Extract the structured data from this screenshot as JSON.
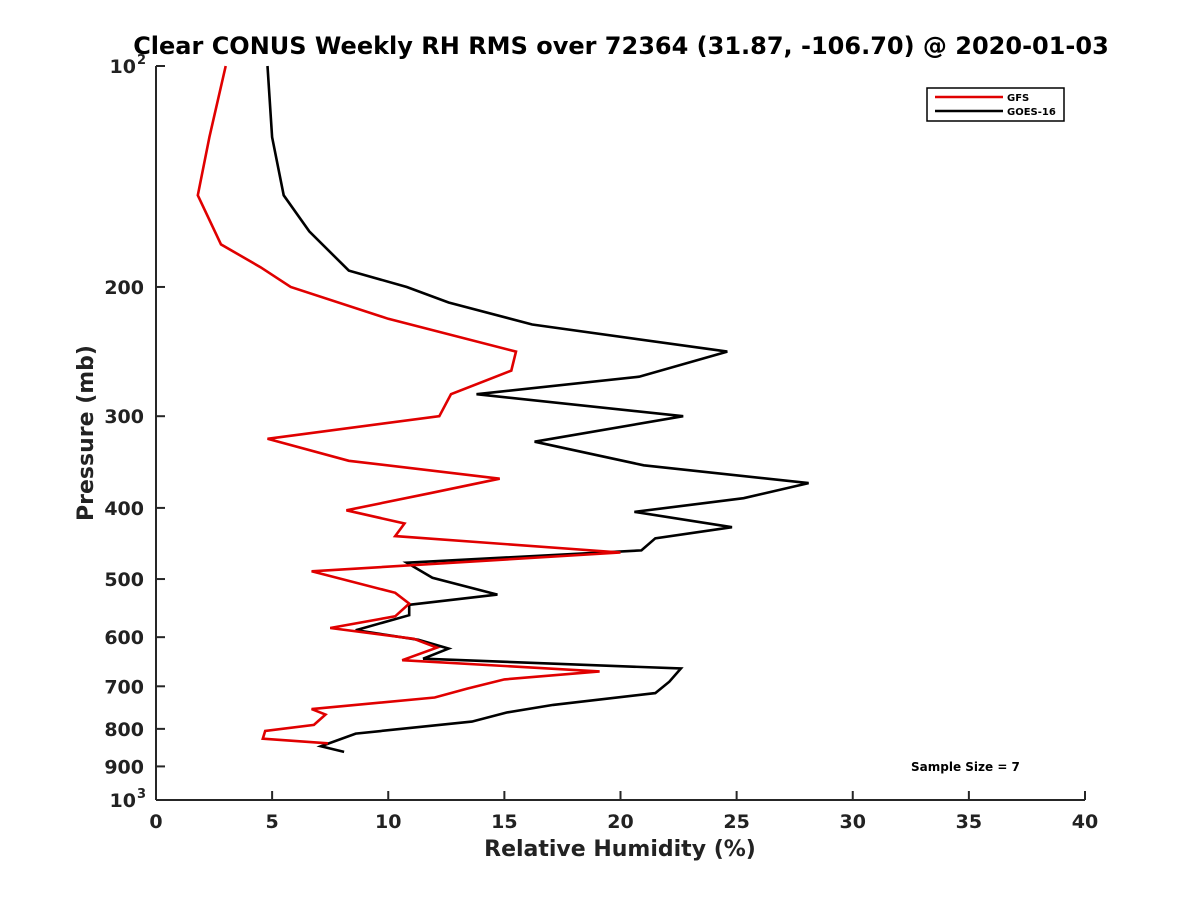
{
  "chart_data": {
    "type": "line",
    "title": "Clear CONUS Weekly RH RMS over 72364 (31.87, -106.70) @ 2020-01-03",
    "xlabel": "Relative Humidity (%)",
    "ylabel": "Pressure (mb)",
    "xlim": [
      0,
      40
    ],
    "ylim": [
      100,
      1000
    ],
    "y_scale": "log",
    "y_reversed": true,
    "x_ticks": [
      "0",
      "5",
      "10",
      "15",
      "20",
      "25",
      "30",
      "35",
      "40"
    ],
    "y_ticks": [
      {
        "value": 100,
        "label": "10",
        "sup": "2"
      },
      {
        "value": 200,
        "label": "200",
        "sup": ""
      },
      {
        "value": 300,
        "label": "300",
        "sup": ""
      },
      {
        "value": 400,
        "label": "400",
        "sup": ""
      },
      {
        "value": 500,
        "label": "500",
        "sup": ""
      },
      {
        "value": 600,
        "label": "600",
        "sup": ""
      },
      {
        "value": 700,
        "label": "700",
        "sup": ""
      },
      {
        "value": 800,
        "label": "800",
        "sup": ""
      },
      {
        "value": 900,
        "label": "900",
        "sup": ""
      },
      {
        "value": 1000,
        "label": "10",
        "sup": "3"
      }
    ],
    "grid": false,
    "legend_position": "top-right",
    "annotation": "Sample Size = 7",
    "series": [
      {
        "name": "GFS",
        "color": "#e00000",
        "points": [
          [
            3.0,
            100
          ],
          [
            2.3,
            125
          ],
          [
            1.8,
            150
          ],
          [
            2.8,
            175
          ],
          [
            4.5,
            188
          ],
          [
            5.8,
            200
          ],
          [
            10.0,
            221
          ],
          [
            15.5,
            245
          ],
          [
            15.3,
            260
          ],
          [
            12.7,
            280
          ],
          [
            12.2,
            300
          ],
          [
            4.8,
            322
          ],
          [
            8.3,
            345
          ],
          [
            14.8,
            365
          ],
          [
            11.8,
            382
          ],
          [
            8.2,
            403
          ],
          [
            10.7,
            420
          ],
          [
            10.3,
            437
          ],
          [
            20.0,
            460
          ],
          [
            6.7,
            488
          ],
          [
            10.3,
            522
          ],
          [
            10.9,
            540
          ],
          [
            10.3,
            562
          ],
          [
            7.5,
            583
          ],
          [
            11.1,
            603
          ],
          [
            12.1,
            620
          ],
          [
            10.6,
            645
          ],
          [
            19.1,
            668
          ],
          [
            15.0,
            685
          ],
          [
            13.4,
            705
          ],
          [
            12.0,
            725
          ],
          [
            6.7,
            752
          ],
          [
            7.3,
            765
          ],
          [
            6.8,
            790
          ],
          [
            4.7,
            805
          ],
          [
            4.6,
            825
          ],
          [
            7.4,
            837
          ]
        ]
      },
      {
        "name": "GOES-16",
        "color": "#000000",
        "points": [
          [
            4.8,
            100
          ],
          [
            5.0,
            125
          ],
          [
            5.5,
            150
          ],
          [
            6.6,
            168
          ],
          [
            8.3,
            190
          ],
          [
            10.8,
            200
          ],
          [
            12.6,
            210
          ],
          [
            16.2,
            225
          ],
          [
            24.6,
            245
          ],
          [
            20.8,
            265
          ],
          [
            13.8,
            280
          ],
          [
            22.7,
            300
          ],
          [
            16.3,
            325
          ],
          [
            21.0,
            350
          ],
          [
            28.1,
            370
          ],
          [
            25.3,
            388
          ],
          [
            20.6,
            405
          ],
          [
            24.8,
            425
          ],
          [
            21.5,
            440
          ],
          [
            20.9,
            457
          ],
          [
            10.8,
            475
          ],
          [
            11.9,
            498
          ],
          [
            14.7,
            525
          ],
          [
            10.9,
            542
          ],
          [
            10.9,
            560
          ],
          [
            8.6,
            587
          ],
          [
            11.3,
            605
          ],
          [
            12.6,
            622
          ],
          [
            11.5,
            642
          ],
          [
            22.6,
            662
          ],
          [
            22.1,
            690
          ],
          [
            21.5,
            715
          ],
          [
            17.1,
            742
          ],
          [
            15.1,
            760
          ],
          [
            13.6,
            782
          ],
          [
            8.6,
            812
          ],
          [
            7.1,
            845
          ],
          [
            8.1,
            860
          ]
        ]
      }
    ]
  }
}
